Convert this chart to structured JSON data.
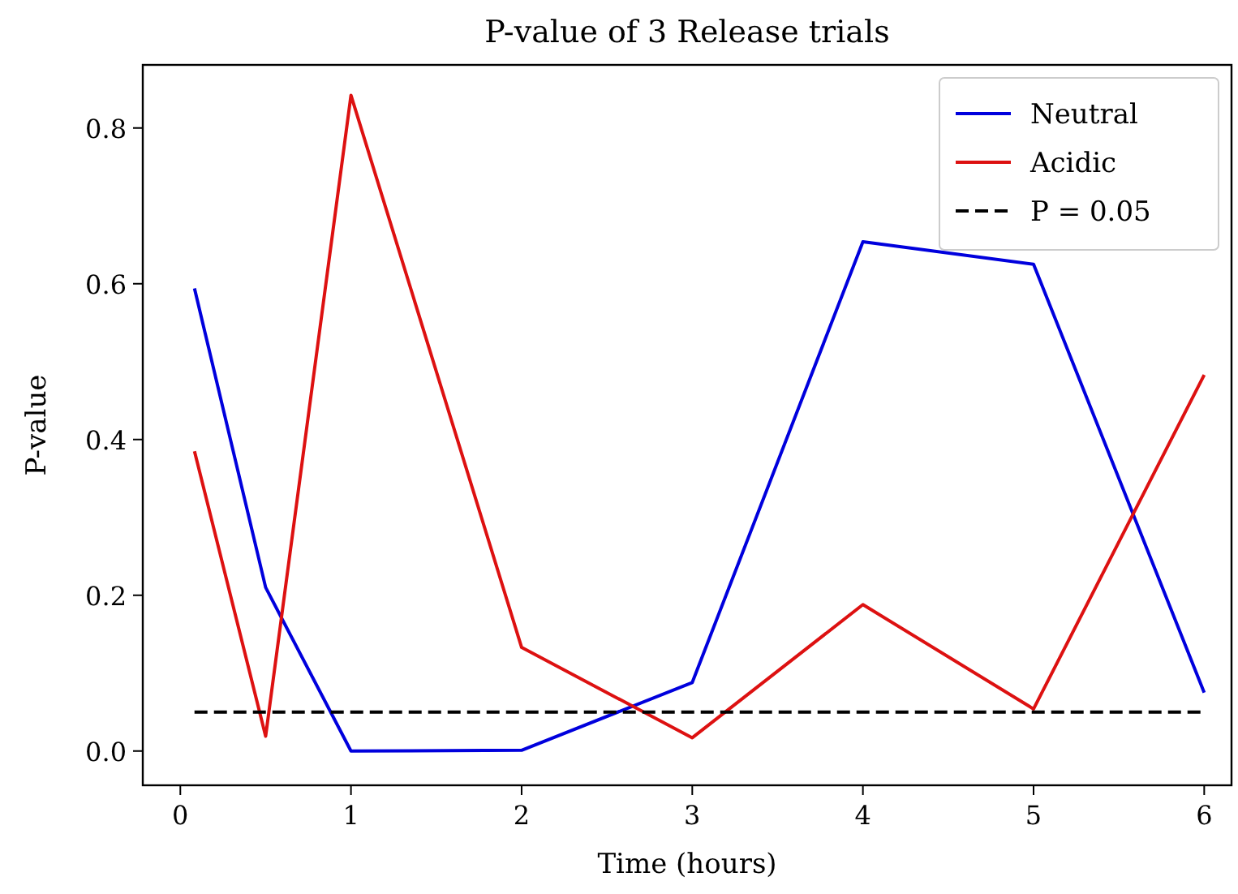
{
  "chart_data": {
    "type": "line",
    "title": "P-value of 3 Release trials",
    "xlabel": "Time (hours)",
    "ylabel": "P-value",
    "x": [
      0.083,
      0.5,
      1,
      2,
      3,
      4,
      5,
      6
    ],
    "series": [
      {
        "name": "Neutral",
        "color": "#0000dd",
        "values": [
          0.594,
          0.21,
          0.0,
          0.001,
          0.088,
          0.654,
          0.625,
          0.075
        ]
      },
      {
        "name": "Acidic",
        "color": "#dd1111",
        "values": [
          0.385,
          0.019,
          0.842,
          0.133,
          0.017,
          0.188,
          0.054,
          0.483
        ]
      },
      {
        "name": "P = 0.05",
        "color": "#000000",
        "line_style": "dashed",
        "x": [
          0.083,
          6
        ],
        "values": [
          0.05,
          0.05
        ]
      }
    ],
    "xlim": [
      -0.22,
      6.16
    ],
    "ylim": [
      -0.044,
      0.881
    ],
    "xticks": [
      0,
      1,
      2,
      3,
      4,
      5,
      6
    ],
    "yticks": [
      {
        "value": 0,
        "label": "0.0"
      },
      {
        "value": 0.2,
        "label": "0.2"
      },
      {
        "value": 0.4,
        "label": "0.4"
      },
      {
        "value": 0.6,
        "label": "0.6"
      },
      {
        "value": 0.8,
        "label": "0.8"
      }
    ],
    "legend": "top right",
    "grid": false
  }
}
